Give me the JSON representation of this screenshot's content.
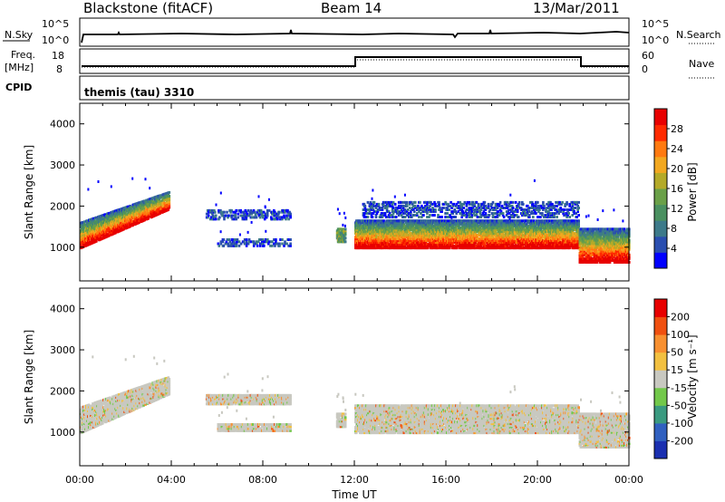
{
  "header": {
    "station": "Blackstone (fitACF)",
    "beam": "Beam 14",
    "date": "13/Mar/2011"
  },
  "strips": {
    "nsky_label": "N.Sky",
    "nsky_ticks": [
      "10^5",
      "10^0"
    ],
    "nsearch_label": "N.Search",
    "nsearch_ticks": [
      "10^5",
      "10^0"
    ],
    "freq_label": "Freq.",
    "freq_unit": "[MHz]",
    "freq_ticks": [
      "18",
      "8"
    ],
    "nave_label": "Nave",
    "nave_ticks": [
      "60",
      "0"
    ],
    "cpid_label": "CPID",
    "cpid_value": "themis (tau) 3310"
  },
  "chart_data": [
    {
      "type": "heatmap",
      "name": "power",
      "ylabel": "Slant Range [km]",
      "xlabel": "",
      "x_range_hours": [
        0,
        24
      ],
      "ylim": [
        180,
        4500
      ],
      "yticks": [
        1000,
        2000,
        3000,
        4000
      ],
      "colorbar": {
        "label": "Power [dB]",
        "ticks": [
          "28",
          "24",
          "20",
          "16",
          "12",
          "8",
          "4"
        ],
        "colors": [
          "#0000ff",
          "#2a4eb0",
          "#3d7a8a",
          "#4a9060",
          "#6aa048",
          "#b4aa28",
          "#f2a820",
          "#ff7a10",
          "#ff2a00",
          "#e80000"
        ]
      },
      "echo_regions": [
        {
          "t0": 0.0,
          "t1": 3.9,
          "r0": 950,
          "r1": 1600,
          "r0_end": 1900,
          "r1_end": 2350,
          "level": "high"
        },
        {
          "t0": 5.5,
          "t1": 9.2,
          "r0": 1650,
          "r1": 1900,
          "level": "low"
        },
        {
          "t0": 6.0,
          "t1": 9.2,
          "r0": 1000,
          "r1": 1200,
          "level": "low"
        },
        {
          "t0": 11.2,
          "t1": 11.6,
          "r0": 1100,
          "r1": 1450,
          "level": "mid"
        },
        {
          "t0": 12.0,
          "t1": 21.8,
          "r0": 950,
          "r1": 1650,
          "level": "high"
        },
        {
          "t0": 12.3,
          "t1": 21.8,
          "r0": 1700,
          "r1": 2100,
          "level": "low"
        },
        {
          "t0": 21.8,
          "t1": 24.0,
          "r0": 600,
          "r1": 1450,
          "level": "high"
        }
      ]
    },
    {
      "type": "heatmap",
      "name": "velocity",
      "ylabel": "Slant Range [km]",
      "xlabel": "Time UT",
      "x_range_hours": [
        0,
        24
      ],
      "xticks": [
        "00:00",
        "04:00",
        "08:00",
        "12:00",
        "16:00",
        "20:00",
        "00:00"
      ],
      "ylim": [
        180,
        4500
      ],
      "yticks": [
        1000,
        2000,
        3000,
        4000
      ],
      "colorbar": {
        "label": "Velocity [m s⁻¹]",
        "ticks": [
          "200",
          "100",
          "50",
          "15",
          "-15",
          "-50",
          "-100",
          "-200"
        ],
        "colors": [
          "#1a2fb0",
          "#3060c0",
          "#3a9a80",
          "#72c84a",
          "#c8c8c0",
          "#f2c040",
          "#f89030",
          "#f05010",
          "#e80000"
        ]
      },
      "echo_regions": [
        {
          "t0": 0.0,
          "t1": 3.9,
          "r0": 950,
          "r1": 1600,
          "r0_end": 1900,
          "r1_end": 2350
        },
        {
          "t0": 5.5,
          "t1": 9.2,
          "r0": 1650,
          "r1": 1900
        },
        {
          "t0": 6.0,
          "t1": 9.2,
          "r0": 1000,
          "r1": 1200
        },
        {
          "t0": 11.2,
          "t1": 11.6,
          "r0": 1100,
          "r1": 1450
        },
        {
          "t0": 12.0,
          "t1": 21.8,
          "r0": 950,
          "r1": 1650
        },
        {
          "t0": 21.8,
          "t1": 24.0,
          "r0": 600,
          "r1": 1450
        }
      ]
    }
  ]
}
